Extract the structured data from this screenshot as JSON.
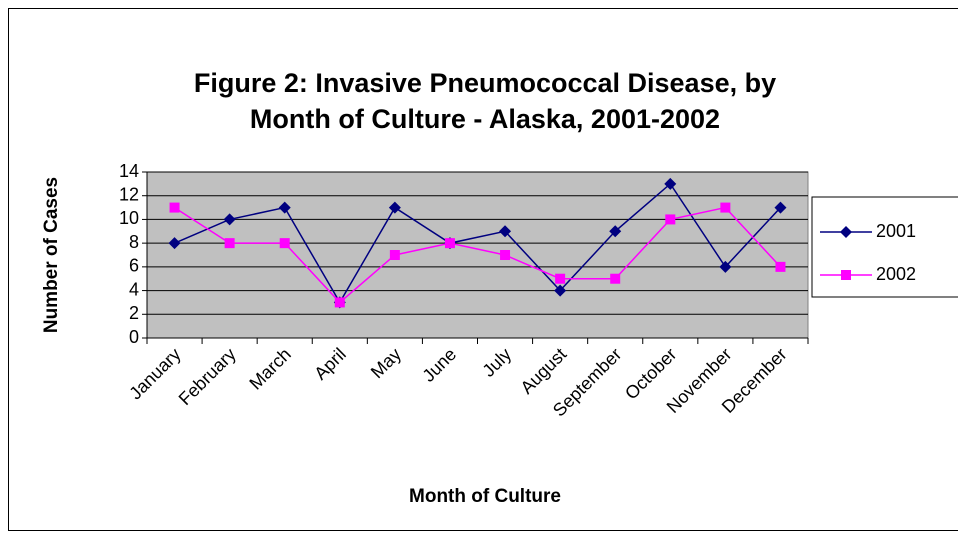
{
  "chart_data": {
    "type": "line",
    "title": [
      "Figure 2:  Invasive Pneumococcal Disease, by",
      "Month of Culture - Alaska, 2001-2002"
    ],
    "x_label": "Month of Culture",
    "y_label": "Number of Cases",
    "categories": [
      "January",
      "February",
      "March",
      "April",
      "May",
      "June",
      "July",
      "August",
      "September",
      "October",
      "November",
      "December"
    ],
    "series": [
      {
        "name": "2001",
        "color": "#000080",
        "marker": "diamond",
        "values": [
          8,
          10,
          11,
          3,
          11,
          8,
          9,
          4,
          9,
          13,
          6,
          11
        ]
      },
      {
        "name": "2002",
        "color": "#ff00ff",
        "marker": "square",
        "values": [
          11,
          8,
          8,
          3,
          7,
          8,
          7,
          5,
          5,
          10,
          11,
          6
        ]
      }
    ],
    "ylim": [
      0,
      14
    ],
    "yticks": [
      0,
      2,
      4,
      6,
      8,
      10,
      12,
      14
    ],
    "grid": true,
    "legend": "right",
    "plot_background": "#c0c0c0"
  }
}
